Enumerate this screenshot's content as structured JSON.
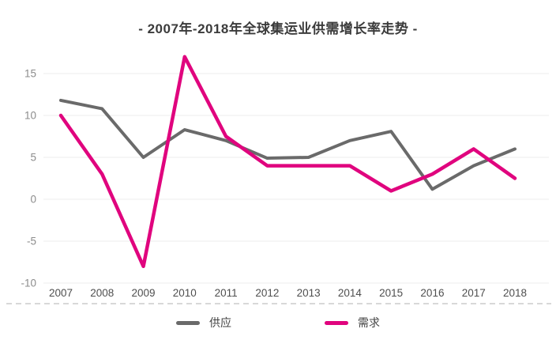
{
  "title": "- 2007年-2018年全球集运业供需增长率走势 -",
  "chart_data": {
    "type": "line",
    "title": "- 2007年-2018年全球集运业供需增长率走势 -",
    "xlabel": "",
    "ylabel": "",
    "categories": [
      "2007",
      "2008",
      "2009",
      "2010",
      "2011",
      "2012",
      "2013",
      "2014",
      "2015",
      "2016",
      "2017",
      "2018"
    ],
    "series": [
      {
        "name": "供应",
        "color": "#6a6a6a",
        "values": [
          11.8,
          10.8,
          5.0,
          8.3,
          7.0,
          4.9,
          5.0,
          7.0,
          8.1,
          1.2,
          4.0,
          6.0
        ]
      },
      {
        "name": "需求",
        "color": "#e0047e",
        "values": [
          10.0,
          3.0,
          -8.0,
          17.0,
          7.5,
          4.0,
          4.0,
          4.0,
          1.0,
          3.0,
          6.0,
          2.5
        ]
      }
    ],
    "ylim": [
      -10,
      17.5
    ],
    "yticks": [
      15,
      10,
      5,
      0,
      -5,
      -10
    ],
    "grid": "horizontal-only",
    "legend_position": "bottom"
  },
  "colors": {
    "background": "#ffffff",
    "title_text": "#3b3b3b",
    "gridline": "#ececec",
    "y_tick_text": "#8c8c8c",
    "x_tick_text": "#4f4f4f",
    "dashed_divider": "#cccccc",
    "legend_text": "#444444"
  }
}
